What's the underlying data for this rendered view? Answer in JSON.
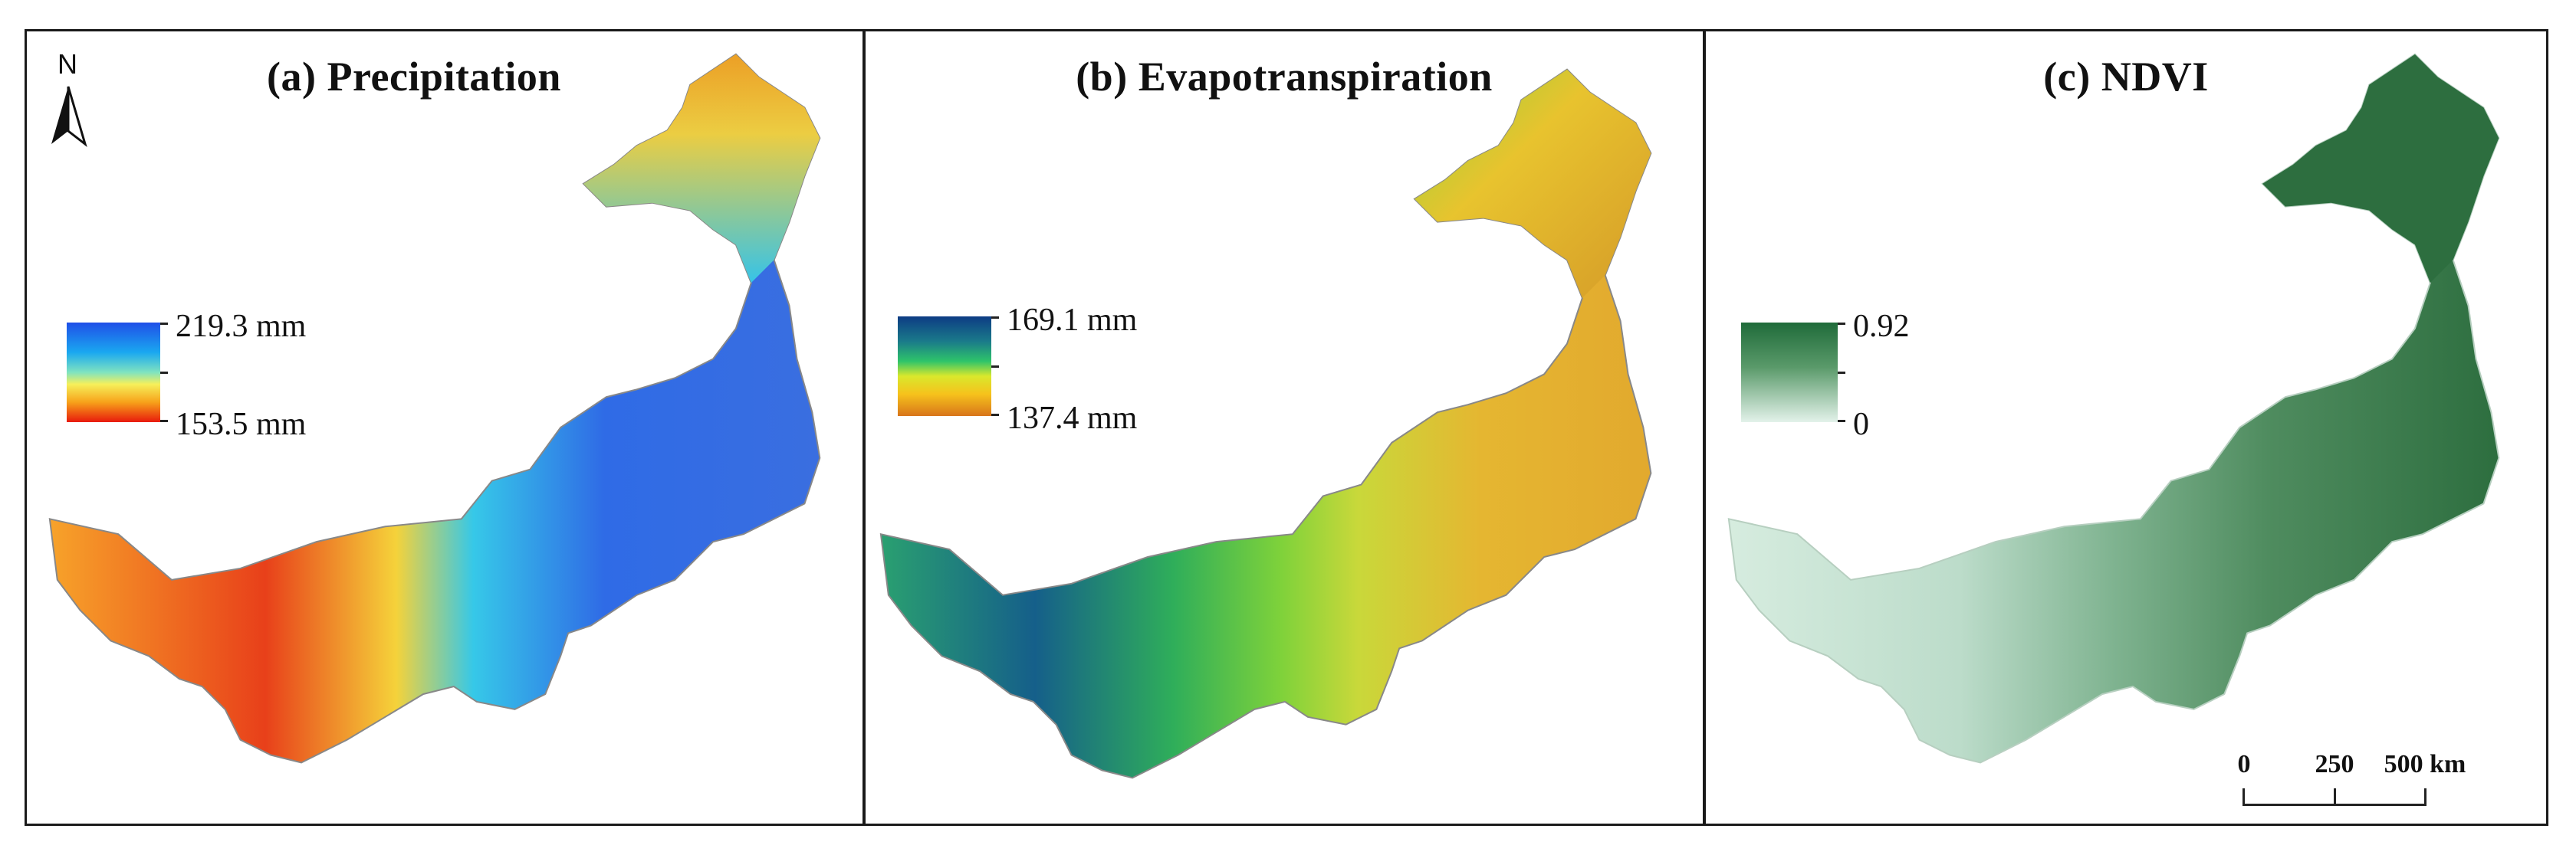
{
  "figure": {
    "panels": [
      {
        "title": "(a) Precipitation",
        "legend": {
          "max_label": "219.3 mm",
          "min_label": "153.5 mm",
          "colors": [
            "#1f4fe8",
            "#1aa8f0",
            "#7fe3c0",
            "#f6f05a",
            "#f7a21a",
            "#e81a0c"
          ]
        },
        "map_colors": {
          "east": "#ffb020",
          "northeast_top": "#f5d23a",
          "center": "#2f6be6",
          "mid": "#36c8e8",
          "west": "#f7a32a",
          "south": "#e8401a"
        }
      },
      {
        "title": "(b) Evapotranspiration",
        "legend": {
          "max_label": "169.1 mm",
          "min_label": "137.4 mm",
          "colors": [
            "#0d3c84",
            "#1a7a8a",
            "#2ec46a",
            "#d9e82c",
            "#f6c21c",
            "#d8751a"
          ]
        },
        "map_colors": {
          "north": "#e8c42e",
          "east": "#e5b631",
          "mid": "#7fd23a",
          "west": "#2aa070",
          "southwest": "#155f8a"
        }
      },
      {
        "title": "(c) NDVI",
        "legend": {
          "max_label": "0.92",
          "min_label": "0",
          "colors": [
            "#1f6b3a",
            "#5a9a6a",
            "#e3f2ea"
          ]
        },
        "map_colors": {
          "east": "#2d6e3f",
          "mid": "#5e9a6c",
          "west": "#d6ecdf"
        }
      }
    ],
    "north_arrow": {
      "letter": "N"
    },
    "scale_bar": {
      "labels": [
        "0",
        "250",
        "500 km"
      ]
    }
  }
}
